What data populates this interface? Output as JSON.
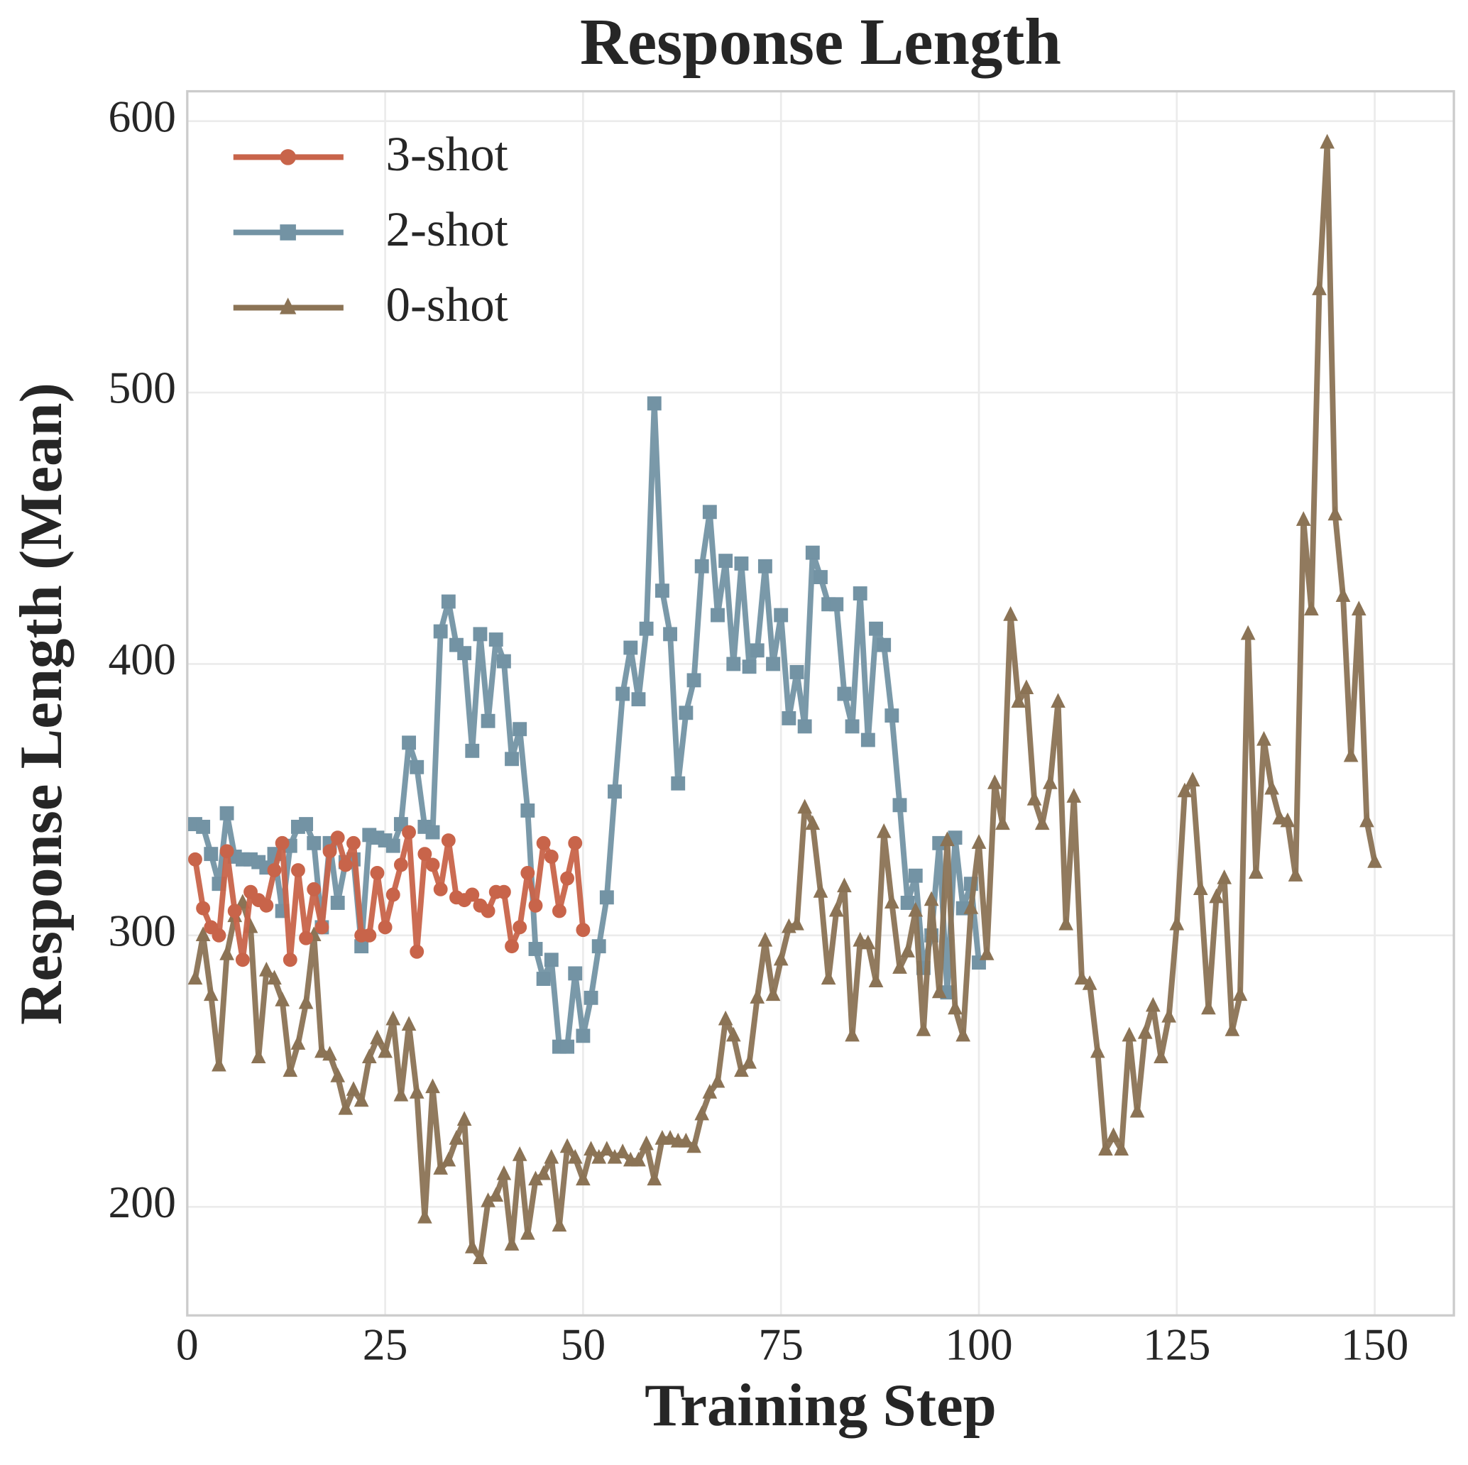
{
  "chart_data": {
    "type": "line",
    "title": "Response Length",
    "x_label": "Training Step",
    "y_label": "Response Length (Mean)",
    "xlim": [
      0,
      160
    ],
    "ylim": [
      160,
      611
    ],
    "xticks": [
      0,
      25,
      50,
      75,
      100,
      125,
      150
    ],
    "yticks": [
      200,
      300,
      400,
      500,
      600
    ],
    "grid": true,
    "legend": "upper left",
    "series": [
      {
        "name": "3-shot",
        "color": "#c8644a",
        "marker": "circle",
        "x": [
          1,
          2,
          3,
          4,
          5,
          6,
          7,
          8,
          9,
          10,
          11,
          12,
          13,
          14,
          15,
          16,
          17,
          18,
          19,
          20,
          21,
          22,
          23,
          24,
          25,
          26,
          27,
          28,
          29,
          30,
          31,
          32,
          33,
          34,
          35,
          36,
          37,
          38,
          39,
          40,
          41,
          42,
          43,
          44,
          45,
          46,
          47,
          48,
          49,
          50
        ],
        "values": [
          328,
          310,
          303,
          300,
          331,
          309,
          291,
          316,
          313,
          311,
          324,
          334,
          291,
          324,
          299,
          317,
          303,
          331,
          336,
          326,
          334,
          300,
          300,
          323,
          303,
          315,
          326,
          338,
          294,
          330,
          326,
          317,
          335,
          314,
          313,
          315,
          311,
          309,
          316,
          316,
          296,
          303,
          323,
          311,
          334,
          329,
          309,
          321,
          334,
          302
        ]
      },
      {
        "name": "2-shot",
        "color": "#7393a4",
        "marker": "square",
        "x": [
          1,
          2,
          3,
          4,
          5,
          6,
          7,
          8,
          9,
          10,
          11,
          12,
          13,
          14,
          15,
          16,
          17,
          18,
          19,
          20,
          21,
          22,
          23,
          24,
          25,
          26,
          27,
          28,
          29,
          30,
          31,
          32,
          33,
          34,
          35,
          36,
          37,
          38,
          39,
          40,
          41,
          42,
          43,
          44,
          45,
          46,
          47,
          48,
          49,
          50,
          51,
          52,
          53,
          54,
          55,
          56,
          57,
          58,
          59,
          60,
          61,
          62,
          63,
          64,
          65,
          66,
          67,
          68,
          69,
          70,
          71,
          72,
          73,
          74,
          75,
          76,
          77,
          78,
          79,
          80,
          81,
          82,
          83,
          84,
          85,
          86,
          87,
          88,
          89,
          90,
          91,
          92,
          93,
          94,
          95,
          96,
          97,
          98,
          99,
          100
        ],
        "values": [
          341,
          340,
          330,
          319,
          345,
          329,
          328,
          328,
          327,
          325,
          330,
          309,
          333,
          340,
          341,
          334,
          303,
          334,
          312,
          327,
          328,
          296,
          337,
          336,
          335,
          333,
          341,
          371,
          362,
          340,
          338,
          412,
          423,
          407,
          404,
          368,
          411,
          379,
          409,
          401,
          365,
          376,
          346,
          295,
          284,
          291,
          259,
          259,
          286,
          263,
          277,
          296,
          314,
          353,
          389,
          406,
          387,
          413,
          496,
          427,
          411,
          356,
          382,
          394,
          436,
          456,
          418,
          438,
          400,
          437,
          399,
          405,
          436,
          400,
          418,
          380,
          397,
          377,
          441,
          432,
          422,
          422,
          389,
          377,
          426,
          372,
          413,
          407,
          381,
          348,
          312,
          322,
          288,
          300,
          334,
          279,
          336,
          310,
          319,
          290
        ]
      },
      {
        "name": "0-shot",
        "color": "#8b7355",
        "marker": "triangle",
        "x": [
          1,
          2,
          3,
          4,
          5,
          6,
          7,
          8,
          9,
          10,
          11,
          12,
          13,
          14,
          15,
          16,
          17,
          18,
          19,
          20,
          21,
          22,
          23,
          24,
          25,
          26,
          27,
          28,
          29,
          30,
          31,
          32,
          33,
          34,
          35,
          36,
          37,
          38,
          39,
          40,
          41,
          42,
          43,
          44,
          45,
          46,
          47,
          48,
          49,
          50,
          51,
          52,
          53,
          54,
          55,
          56,
          57,
          58,
          59,
          60,
          61,
          62,
          63,
          64,
          65,
          66,
          67,
          68,
          69,
          70,
          71,
          72,
          73,
          74,
          75,
          76,
          77,
          78,
          79,
          80,
          81,
          82,
          83,
          84,
          85,
          86,
          87,
          88,
          89,
          90,
          91,
          92,
          93,
          94,
          95,
          96,
          97,
          98,
          99,
          100,
          101,
          102,
          103,
          104,
          105,
          106,
          107,
          108,
          109,
          110,
          111,
          112,
          113,
          114,
          115,
          116,
          117,
          118,
          119,
          120,
          121,
          122,
          123,
          124,
          125,
          126,
          127,
          128,
          129,
          130,
          131,
          132,
          133,
          134,
          135,
          136,
          137,
          138,
          139,
          140,
          141,
          142,
          143,
          144,
          145,
          146,
          147,
          148,
          149,
          150
        ],
        "values": [
          284,
          300,
          278,
          252,
          293,
          307,
          312,
          303,
          255,
          287,
          284,
          276,
          250,
          260,
          275,
          300,
          257,
          256,
          248,
          236,
          243,
          239,
          255,
          262,
          257,
          269,
          241,
          267,
          242,
          196,
          244,
          214,
          217,
          225,
          232,
          185,
          181,
          202,
          204,
          212,
          186,
          219,
          190,
          210,
          212,
          218,
          193,
          222,
          218,
          210,
          221,
          218,
          221,
          218,
          220,
          217,
          217,
          223,
          210,
          225,
          225,
          224,
          224,
          222,
          234,
          242,
          246,
          269,
          263,
          250,
          253,
          277,
          298,
          278,
          291,
          303,
          304,
          347,
          341,
          316,
          284,
          309,
          318,
          263,
          298,
          297,
          283,
          338,
          312,
          288,
          294,
          309,
          265,
          313,
          279,
          335,
          273,
          263,
          310,
          334,
          293,
          356,
          341,
          418,
          386,
          391,
          350,
          341,
          356,
          386,
          304,
          351,
          284,
          282,
          257,
          221,
          226,
          221,
          263,
          235,
          264,
          274,
          255,
          270,
          304,
          353,
          357,
          317,
          273,
          314,
          321,
          265,
          278,
          411,
          323,
          372,
          354,
          343,
          342,
          322,
          453,
          420,
          538,
          592,
          455,
          425,
          366,
          420,
          342,
          327
        ]
      }
    ]
  }
}
